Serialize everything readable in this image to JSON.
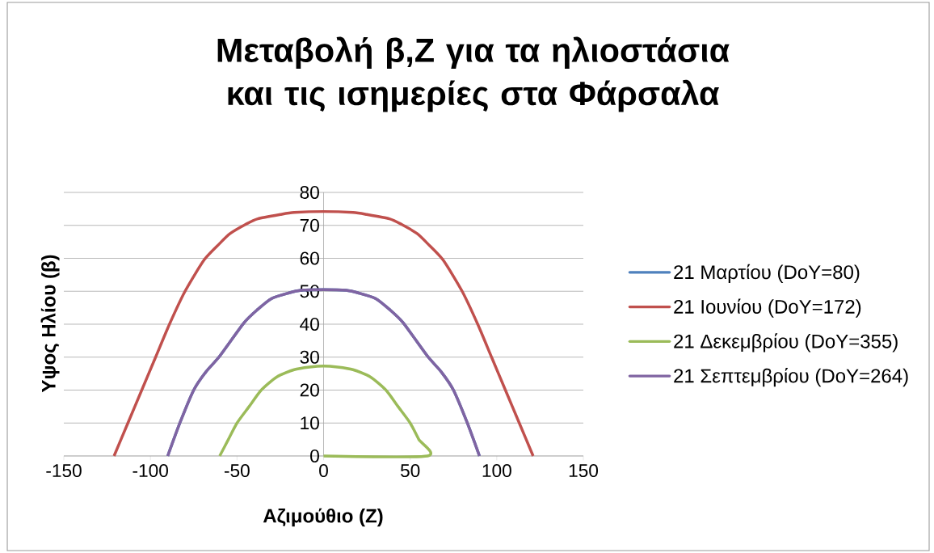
{
  "chart_data": {
    "type": "line",
    "title": "Μεταβολή β,Ζ για τα ηλιοστάσια και τις ισημερίες στα Φάρσαλα",
    "xlabel": "Αζιμούθιο (Ζ)",
    "ylabel": "Υψος Ηλίου (β)",
    "xlim": [
      -150,
      150
    ],
    "ylim": [
      0,
      80
    ],
    "xticks": [
      -150,
      -100,
      -50,
      0,
      50,
      100,
      150
    ],
    "yticks": [
      0,
      10,
      20,
      30,
      40,
      50,
      60,
      70,
      80
    ],
    "grid": "y",
    "legend": "right",
    "line_style": "solid",
    "series": [
      {
        "name": "21 Μαρτίου (DoY=80)",
        "color": "#4f81bd",
        "x": [
          -90,
          -83,
          -75,
          -68,
          -60,
          -46,
          -38,
          -30,
          -20,
          -13,
          0,
          13,
          20,
          30,
          38,
          46,
          60,
          68,
          75,
          83,
          90
        ],
        "values": [
          0,
          10,
          20,
          25.5,
          30.3,
          40.4,
          44.5,
          47.8,
          49.5,
          50.3,
          50.5,
          50.3,
          49.5,
          47.8,
          44.5,
          40.4,
          30.3,
          25.5,
          20,
          10,
          0
        ]
      },
      {
        "name": "21 Ιουνίου (DoY=172)",
        "color": "#c0504d",
        "x": [
          -121,
          -113,
          -105,
          -97,
          -89,
          -80,
          -69,
          -60,
          -54,
          -45,
          -38,
          -25,
          -17,
          0,
          17,
          25,
          38,
          45,
          54,
          60,
          69,
          80,
          89,
          97,
          105,
          113,
          121
        ],
        "values": [
          0,
          10,
          20,
          30,
          40,
          50,
          59.5,
          64.5,
          67.5,
          70.3,
          72,
          73.3,
          73.9,
          74.2,
          73.9,
          73.3,
          72,
          70.3,
          67.5,
          64.5,
          59.5,
          50,
          40,
          30,
          20,
          10,
          0
        ]
      },
      {
        "name": "21 Δεκεμβρίου (DoY=355)",
        "color": "#9bbb59",
        "x": [
          -60,
          -55,
          -50,
          -43,
          -36,
          -27,
          -17,
          -8,
          0,
          8,
          17,
          27,
          36,
          43,
          50,
          55,
          60,
          0
        ],
        "values": [
          0,
          5,
          10,
          15,
          20,
          24,
          26.2,
          27,
          27.3,
          27,
          26.2,
          24,
          20,
          15,
          10,
          5,
          0,
          0
        ]
      },
      {
        "name": "21 Σεπτεμβρίου (DoY=264)",
        "color": "#8064a2",
        "x": [
          -90,
          -83,
          -75,
          -68,
          -60,
          -46,
          -38,
          -30,
          -20,
          -13,
          0,
          13,
          20,
          30,
          38,
          46,
          60,
          68,
          75,
          83,
          90
        ],
        "values": [
          0,
          10,
          20,
          25.5,
          30.3,
          40.4,
          44.5,
          47.8,
          49.5,
          50.3,
          50.5,
          50.3,
          49.5,
          47.8,
          44.5,
          40.4,
          30.3,
          25.5,
          20,
          10,
          0
        ]
      }
    ]
  }
}
